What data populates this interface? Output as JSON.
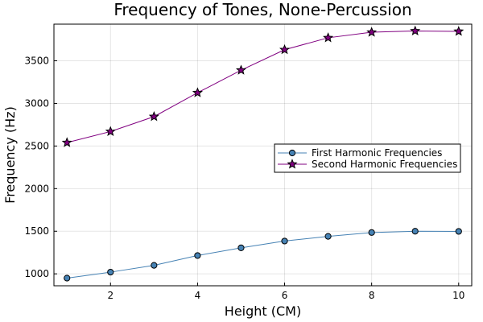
{
  "chart_data": {
    "type": "line",
    "title": "Frequency of Tones, None-Percussion",
    "xlabel": "Height (CM)",
    "ylabel": "Frequency (Hz)",
    "x": [
      1,
      2,
      3,
      4,
      5,
      6,
      7,
      8,
      9,
      10
    ],
    "xlim": [
      0.7,
      10.3
    ],
    "ylim": [
      860,
      3930
    ],
    "xticks": [
      2,
      4,
      6,
      8,
      10
    ],
    "yticks": [
      1000,
      1500,
      2000,
      2500,
      3000,
      3500
    ],
    "grid": true,
    "legend_position": "right",
    "series": [
      {
        "name": "First Harmonic Frequencies",
        "color": "#4682b4",
        "marker": "circle",
        "values": [
          950,
          1020,
          1100,
          1215,
          1305,
          1385,
          1440,
          1485,
          1500,
          1498
        ]
      },
      {
        "name": "Second Harmonic Frequencies",
        "color": "#800080",
        "marker": "star",
        "values": [
          2540,
          2670,
          2845,
          3125,
          3390,
          3630,
          3770,
          3835,
          3850,
          3845
        ]
      }
    ]
  }
}
